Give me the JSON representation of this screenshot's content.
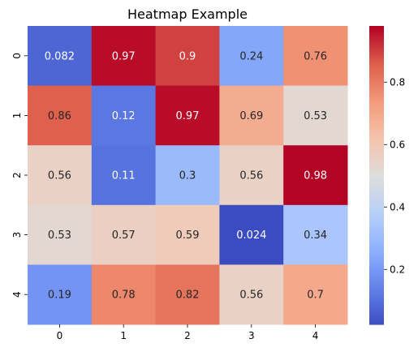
{
  "chart_data": {
    "type": "heatmap",
    "title": "Heatmap Example",
    "xlabel": "",
    "ylabel": "",
    "x_categories": [
      "0",
      "1",
      "2",
      "3",
      "4"
    ],
    "y_categories": [
      "0",
      "1",
      "2",
      "3",
      "4"
    ],
    "values": [
      [
        0.082,
        0.97,
        0.9,
        0.24,
        0.76
      ],
      [
        0.86,
        0.12,
        0.97,
        0.69,
        0.53
      ],
      [
        0.56,
        0.11,
        0.3,
        0.56,
        0.98
      ],
      [
        0.53,
        0.57,
        0.59,
        0.024,
        0.34
      ],
      [
        0.19,
        0.78,
        0.82,
        0.56,
        0.7
      ]
    ],
    "value_labels": [
      [
        "0.082",
        "0.97",
        "0.9",
        "0.24",
        "0.76"
      ],
      [
        "0.86",
        "0.12",
        "0.97",
        "0.69",
        "0.53"
      ],
      [
        "0.56",
        "0.11",
        "0.3",
        "0.56",
        "0.98"
      ],
      [
        "0.53",
        "0.57",
        "0.59",
        "0.024",
        "0.34"
      ],
      [
        "0.19",
        "0.78",
        "0.82",
        "0.56",
        "0.7"
      ]
    ],
    "colormap": "coolwarm",
    "vmin": 0.024,
    "vmax": 0.98,
    "colorbar": {
      "ticks": [
        0.2,
        0.4,
        0.6,
        0.8
      ],
      "tick_labels": [
        "0.2",
        "0.4",
        "0.6",
        "0.8"
      ]
    },
    "grid": false,
    "legend": "colorbar-right"
  }
}
